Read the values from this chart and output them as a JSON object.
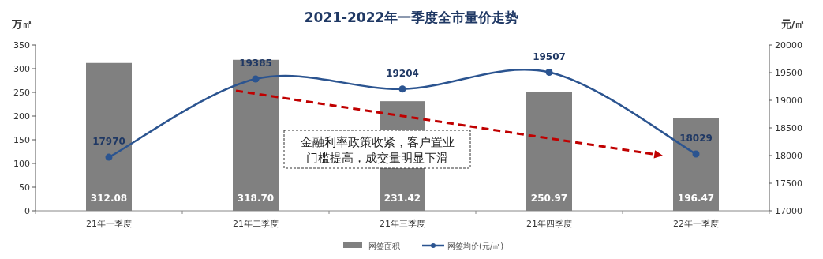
{
  "chart_data": {
    "type": "bar",
    "title": "2021-2022年一季度全市量价走势",
    "ylabel": "万㎡",
    "y2label": "元/㎡",
    "categories": [
      "21年一季度",
      "21年二季度",
      "21年三季度",
      "21年四季度",
      "22年一季度"
    ],
    "series": [
      {
        "name": "网签面积",
        "color": "#808080",
        "values": [
          312.08,
          318.7,
          231.42,
          250.97,
          196.47
        ],
        "value_labels": [
          "312.08",
          "318.70",
          "231.42",
          "250.97",
          "196.47"
        ]
      },
      {
        "name": "网签均价(元/㎡)",
        "type": "line",
        "axis": "y2",
        "color": "#2b5490",
        "marker": "circle",
        "values": [
          17970,
          19385,
          19204,
          19507,
          18029
        ]
      }
    ],
    "ylim": [
      0,
      350
    ],
    "yticks": [
      0,
      50,
      100,
      150,
      200,
      250,
      300,
      350
    ],
    "y2lim": [
      17000,
      20000
    ],
    "y2ticks": [
      17000,
      17500,
      18000,
      18500,
      19000,
      19500,
      20000
    ],
    "data_labels": true,
    "legend": "bottom",
    "grid": false,
    "annotations": [
      "金融利率政策收紧，客户置业门槛提高，成交量明显下滑"
    ]
  }
}
